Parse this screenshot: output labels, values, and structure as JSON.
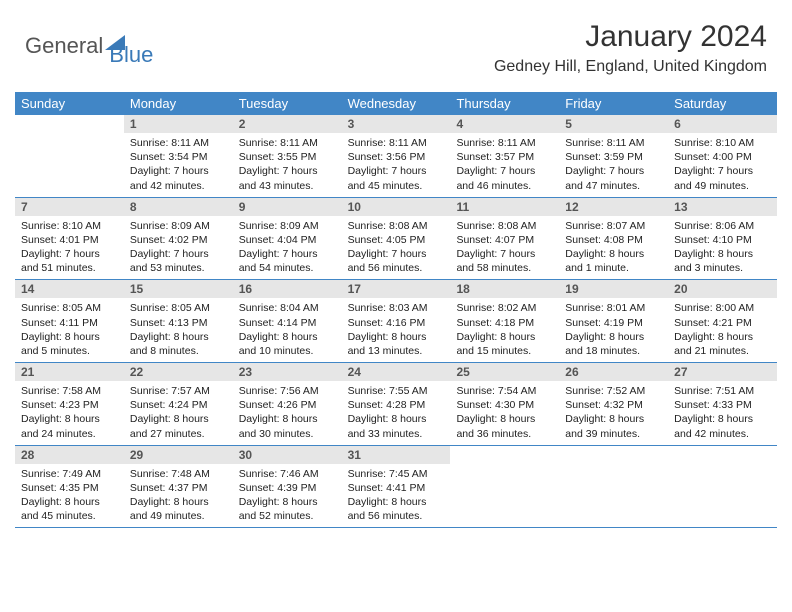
{
  "logo": {
    "text1": "General",
    "text2": "Blue"
  },
  "title": "January 2024",
  "location": "Gedney Hill, England, United Kingdom",
  "colors": {
    "header_bg": "#4186c6",
    "header_text": "#ffffff",
    "daynum_bg": "#e6e6e6",
    "daynum_text": "#555555",
    "border": "#4186c6",
    "logo_blue": "#3a7ab8",
    "logo_gray": "#555555"
  },
  "day_names": [
    "Sunday",
    "Monday",
    "Tuesday",
    "Wednesday",
    "Thursday",
    "Friday",
    "Saturday"
  ],
  "first_weekday_index": 1,
  "days": [
    {
      "n": 1,
      "sunrise": "8:11 AM",
      "sunset": "3:54 PM",
      "daylight": "7 hours and 42 minutes."
    },
    {
      "n": 2,
      "sunrise": "8:11 AM",
      "sunset": "3:55 PM",
      "daylight": "7 hours and 43 minutes."
    },
    {
      "n": 3,
      "sunrise": "8:11 AM",
      "sunset": "3:56 PM",
      "daylight": "7 hours and 45 minutes."
    },
    {
      "n": 4,
      "sunrise": "8:11 AM",
      "sunset": "3:57 PM",
      "daylight": "7 hours and 46 minutes."
    },
    {
      "n": 5,
      "sunrise": "8:11 AM",
      "sunset": "3:59 PM",
      "daylight": "7 hours and 47 minutes."
    },
    {
      "n": 6,
      "sunrise": "8:10 AM",
      "sunset": "4:00 PM",
      "daylight": "7 hours and 49 minutes."
    },
    {
      "n": 7,
      "sunrise": "8:10 AM",
      "sunset": "4:01 PM",
      "daylight": "7 hours and 51 minutes."
    },
    {
      "n": 8,
      "sunrise": "8:09 AM",
      "sunset": "4:02 PM",
      "daylight": "7 hours and 53 minutes."
    },
    {
      "n": 9,
      "sunrise": "8:09 AM",
      "sunset": "4:04 PM",
      "daylight": "7 hours and 54 minutes."
    },
    {
      "n": 10,
      "sunrise": "8:08 AM",
      "sunset": "4:05 PM",
      "daylight": "7 hours and 56 minutes."
    },
    {
      "n": 11,
      "sunrise": "8:08 AM",
      "sunset": "4:07 PM",
      "daylight": "7 hours and 58 minutes."
    },
    {
      "n": 12,
      "sunrise": "8:07 AM",
      "sunset": "4:08 PM",
      "daylight": "8 hours and 1 minute."
    },
    {
      "n": 13,
      "sunrise": "8:06 AM",
      "sunset": "4:10 PM",
      "daylight": "8 hours and 3 minutes."
    },
    {
      "n": 14,
      "sunrise": "8:05 AM",
      "sunset": "4:11 PM",
      "daylight": "8 hours and 5 minutes."
    },
    {
      "n": 15,
      "sunrise": "8:05 AM",
      "sunset": "4:13 PM",
      "daylight": "8 hours and 8 minutes."
    },
    {
      "n": 16,
      "sunrise": "8:04 AM",
      "sunset": "4:14 PM",
      "daylight": "8 hours and 10 minutes."
    },
    {
      "n": 17,
      "sunrise": "8:03 AM",
      "sunset": "4:16 PM",
      "daylight": "8 hours and 13 minutes."
    },
    {
      "n": 18,
      "sunrise": "8:02 AM",
      "sunset": "4:18 PM",
      "daylight": "8 hours and 15 minutes."
    },
    {
      "n": 19,
      "sunrise": "8:01 AM",
      "sunset": "4:19 PM",
      "daylight": "8 hours and 18 minutes."
    },
    {
      "n": 20,
      "sunrise": "8:00 AM",
      "sunset": "4:21 PM",
      "daylight": "8 hours and 21 minutes."
    },
    {
      "n": 21,
      "sunrise": "7:58 AM",
      "sunset": "4:23 PM",
      "daylight": "8 hours and 24 minutes."
    },
    {
      "n": 22,
      "sunrise": "7:57 AM",
      "sunset": "4:24 PM",
      "daylight": "8 hours and 27 minutes."
    },
    {
      "n": 23,
      "sunrise": "7:56 AM",
      "sunset": "4:26 PM",
      "daylight": "8 hours and 30 minutes."
    },
    {
      "n": 24,
      "sunrise": "7:55 AM",
      "sunset": "4:28 PM",
      "daylight": "8 hours and 33 minutes."
    },
    {
      "n": 25,
      "sunrise": "7:54 AM",
      "sunset": "4:30 PM",
      "daylight": "8 hours and 36 minutes."
    },
    {
      "n": 26,
      "sunrise": "7:52 AM",
      "sunset": "4:32 PM",
      "daylight": "8 hours and 39 minutes."
    },
    {
      "n": 27,
      "sunrise": "7:51 AM",
      "sunset": "4:33 PM",
      "daylight": "8 hours and 42 minutes."
    },
    {
      "n": 28,
      "sunrise": "7:49 AM",
      "sunset": "4:35 PM",
      "daylight": "8 hours and 45 minutes."
    },
    {
      "n": 29,
      "sunrise": "7:48 AM",
      "sunset": "4:37 PM",
      "daylight": "8 hours and 49 minutes."
    },
    {
      "n": 30,
      "sunrise": "7:46 AM",
      "sunset": "4:39 PM",
      "daylight": "8 hours and 52 minutes."
    },
    {
      "n": 31,
      "sunrise": "7:45 AM",
      "sunset": "4:41 PM",
      "daylight": "8 hours and 56 minutes."
    }
  ],
  "labels": {
    "sunrise": "Sunrise:",
    "sunset": "Sunset:",
    "daylight": "Daylight:"
  }
}
